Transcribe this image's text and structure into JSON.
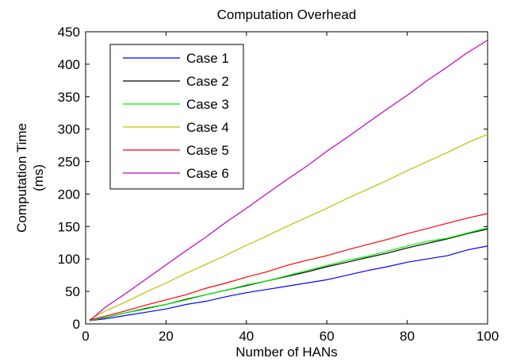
{
  "chart_data": {
    "type": "line",
    "title": "Computation Overhead",
    "xlabel": "Number of HANs",
    "ylabel": [
      "Computation Time",
      "(ms)"
    ],
    "xlim": [
      0,
      100
    ],
    "ylim": [
      0,
      450
    ],
    "xticks": [
      "0",
      "20",
      "40",
      "60",
      "80",
      "100"
    ],
    "yticks": [
      "0",
      "50",
      "100",
      "150",
      "200",
      "250",
      "300",
      "350",
      "400",
      "450"
    ],
    "grid": false,
    "legend_position": "top-left",
    "x": [
      1,
      5,
      10,
      15,
      20,
      25,
      30,
      35,
      40,
      45,
      50,
      55,
      60,
      65,
      70,
      75,
      80,
      85,
      90,
      95,
      100
    ],
    "series": [
      {
        "name": "Case 1",
        "color": "#0000ff",
        "values": [
          5,
          8,
          13,
          18,
          23,
          30,
          35,
          42,
          48,
          53,
          58,
          63,
          68,
          75,
          82,
          88,
          95,
          100,
          105,
          114,
          120
        ]
      },
      {
        "name": "Case 2",
        "color": "#000000",
        "values": [
          5,
          10,
          17,
          24,
          30,
          38,
          45,
          52,
          59,
          66,
          73,
          80,
          88,
          95,
          102,
          109,
          117,
          124,
          131,
          139,
          146
        ]
      },
      {
        "name": "Case 3",
        "color": "#00ee00",
        "values": [
          5,
          10,
          17,
          23,
          30,
          37,
          45,
          52,
          60,
          66,
          74,
          82,
          90,
          98,
          104,
          112,
          120,
          127,
          132,
          140,
          148
        ]
      },
      {
        "name": "Case 4",
        "color": "#bfbf00",
        "values": [
          7,
          20,
          34,
          49,
          63,
          78,
          92,
          106,
          121,
          135,
          150,
          164,
          178,
          193,
          207,
          221,
          236,
          250,
          264,
          279,
          292
        ]
      },
      {
        "name": "Case 5",
        "color": "#ff0000",
        "values": [
          6,
          12,
          20,
          29,
          37,
          45,
          55,
          63,
          72,
          80,
          90,
          98,
          105,
          114,
          122,
          130,
          139,
          147,
          155,
          163,
          170
        ]
      },
      {
        "name": "Case 6",
        "color": "#c000c0",
        "values": [
          5,
          26,
          47,
          69,
          91,
          113,
          134,
          157,
          178,
          200,
          222,
          243,
          266,
          287,
          309,
          331,
          352,
          375,
          396,
          418,
          437
        ]
      }
    ]
  }
}
